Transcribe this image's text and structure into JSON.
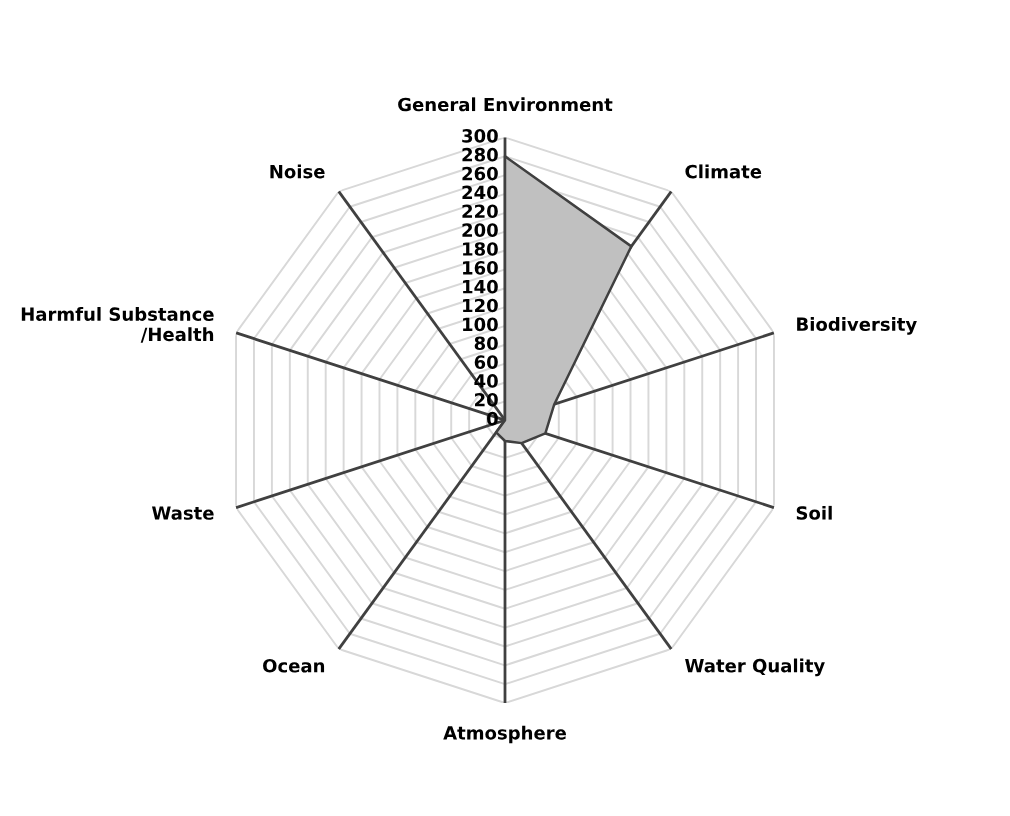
{
  "chart_data": {
    "type": "radar",
    "categories": [
      "General Environment",
      "Climate",
      "Biodiversity",
      "Soil",
      "Water Quality",
      "Atmosphere",
      "Ocean",
      "Waste",
      "Harmful Substance\n/Health",
      "Noise"
    ],
    "series": [
      {
        "color": "#c0c0c0",
        "values": [
          280,
          228,
          55,
          45,
          30,
          22,
          16,
          0,
          0,
          0
        ]
      }
    ],
    "ylim": [
      0,
      300
    ],
    "yticks": [
      0,
      20,
      40,
      60,
      80,
      100,
      120,
      140,
      160,
      180,
      200,
      220,
      240,
      260,
      280,
      300
    ],
    "grid": true
  }
}
